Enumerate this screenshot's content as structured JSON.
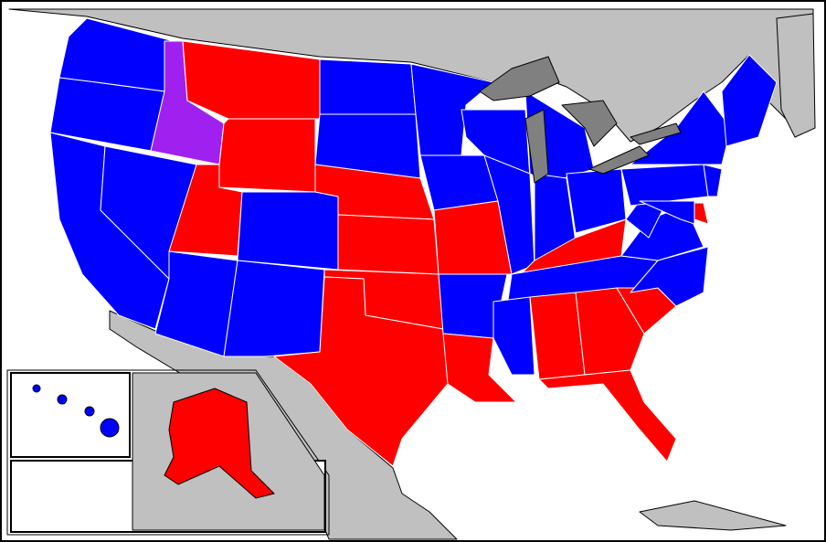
{
  "map": {
    "colors": {
      "water": "#ffffff",
      "land": "#c0c0c0",
      "lake": "#808080",
      "blue": "#0000ff",
      "red": "#ff0000",
      "purple": "#a020f0",
      "border": "#000000"
    }
  }
}
